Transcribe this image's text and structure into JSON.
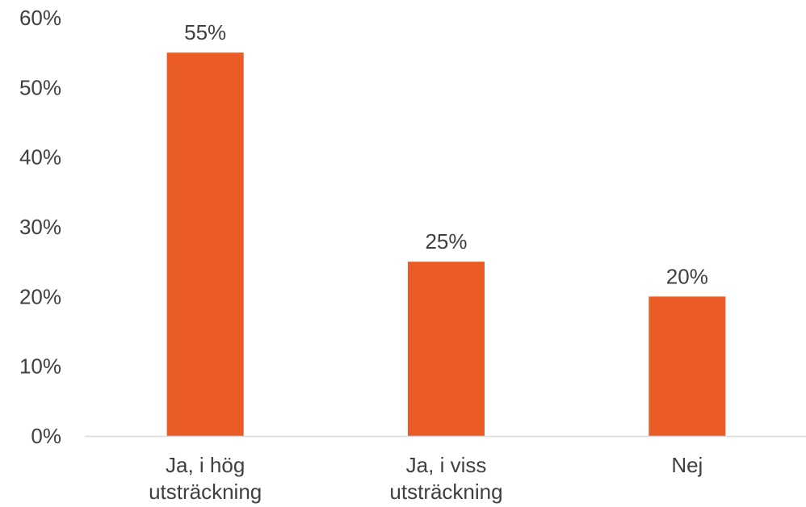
{
  "chart_data": {
    "type": "bar",
    "categories": [
      [
        "Ja, i hög",
        "utsträckning"
      ],
      [
        "Ja, i viss",
        "utsträckning"
      ],
      [
        "Nej"
      ]
    ],
    "values": [
      55,
      25,
      20
    ],
    "data_labels": [
      "55%",
      "25%",
      "20%"
    ],
    "yticks": [
      "0%",
      "10%",
      "20%",
      "30%",
      "40%",
      "50%",
      "60%"
    ],
    "ylim": [
      0,
      60
    ],
    "title": "",
    "xlabel": "",
    "ylabel": "",
    "grid": false,
    "bar_color": "#EB5B25",
    "axis_color": "#D9D9D9",
    "text_color": "#404040"
  }
}
